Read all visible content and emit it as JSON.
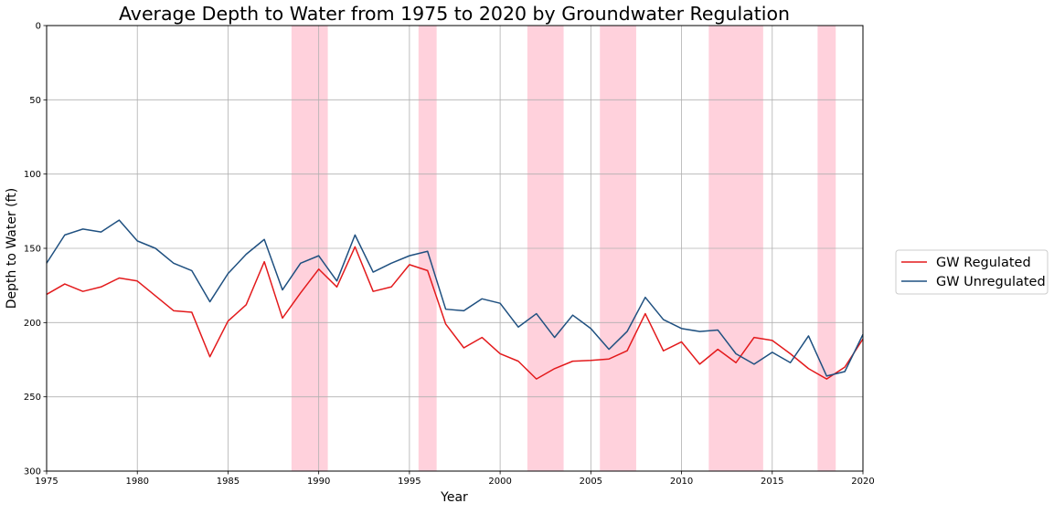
{
  "chart_data": {
    "type": "line",
    "title": "Average Depth to Water from 1975 to 2020 by Groundwater Regulation",
    "xlabel": "Year",
    "ylabel": "Depth to Water (ft)",
    "xlim": [
      1975,
      2020
    ],
    "ylim": [
      0,
      300
    ],
    "y_inverted": true,
    "grid": true,
    "legend_position": "right",
    "x_ticks": [
      1975,
      1980,
      1985,
      1990,
      1995,
      2000,
      2005,
      2010,
      2015,
      2020
    ],
    "y_ticks": [
      0,
      50,
      100,
      150,
      200,
      250,
      300
    ],
    "shaded_periods": [
      [
        1988.5,
        1990.5
      ],
      [
        1995.5,
        1996.5
      ],
      [
        2001.5,
        2003.5
      ],
      [
        2005.5,
        2007.5
      ],
      [
        2011.5,
        2014.5
      ],
      [
        2017.5,
        2018.5
      ]
    ],
    "shade_color": "#ffd1dc",
    "x": [
      1975,
      1976,
      1977,
      1978,
      1979,
      1980,
      1981,
      1982,
      1983,
      1984,
      1985,
      1986,
      1987,
      1988,
      1989,
      1990,
      1991,
      1992,
      1993,
      1994,
      1995,
      1996,
      1997,
      1998,
      1999,
      2000,
      2001,
      2002,
      2003,
      2004,
      2005,
      2006,
      2007,
      2008,
      2009,
      2010,
      2011,
      2012,
      2013,
      2014,
      2015,
      2016,
      2017,
      2018,
      2019,
      2020
    ],
    "series": [
      {
        "name": "GW Regulated",
        "color": "#e31a1c",
        "values": [
          181,
          174,
          179,
          176,
          170,
          172,
          182,
          192,
          193,
          223,
          199,
          188,
          159,
          197,
          180,
          164,
          176,
          149,
          179,
          176,
          161,
          165,
          201,
          217,
          210,
          221,
          226,
          238,
          231,
          226,
          225.5,
          224.5,
          219,
          194,
          219,
          213,
          228,
          218,
          227,
          210,
          212,
          221,
          231,
          238,
          230,
          211
        ]
      },
      {
        "name": "GW Unregulated",
        "color": "#1f5080",
        "values": [
          160,
          141,
          137,
          139,
          131,
          145,
          150,
          160,
          165,
          186,
          167,
          154,
          144,
          178,
          160,
          155,
          172,
          141,
          166,
          160,
          155,
          152,
          191,
          192,
          184,
          187,
          203,
          194,
          210,
          195,
          204,
          218,
          206,
          183,
          198,
          204,
          206,
          205,
          221,
          228,
          220,
          227,
          209,
          236,
          233,
          208
        ]
      }
    ]
  }
}
